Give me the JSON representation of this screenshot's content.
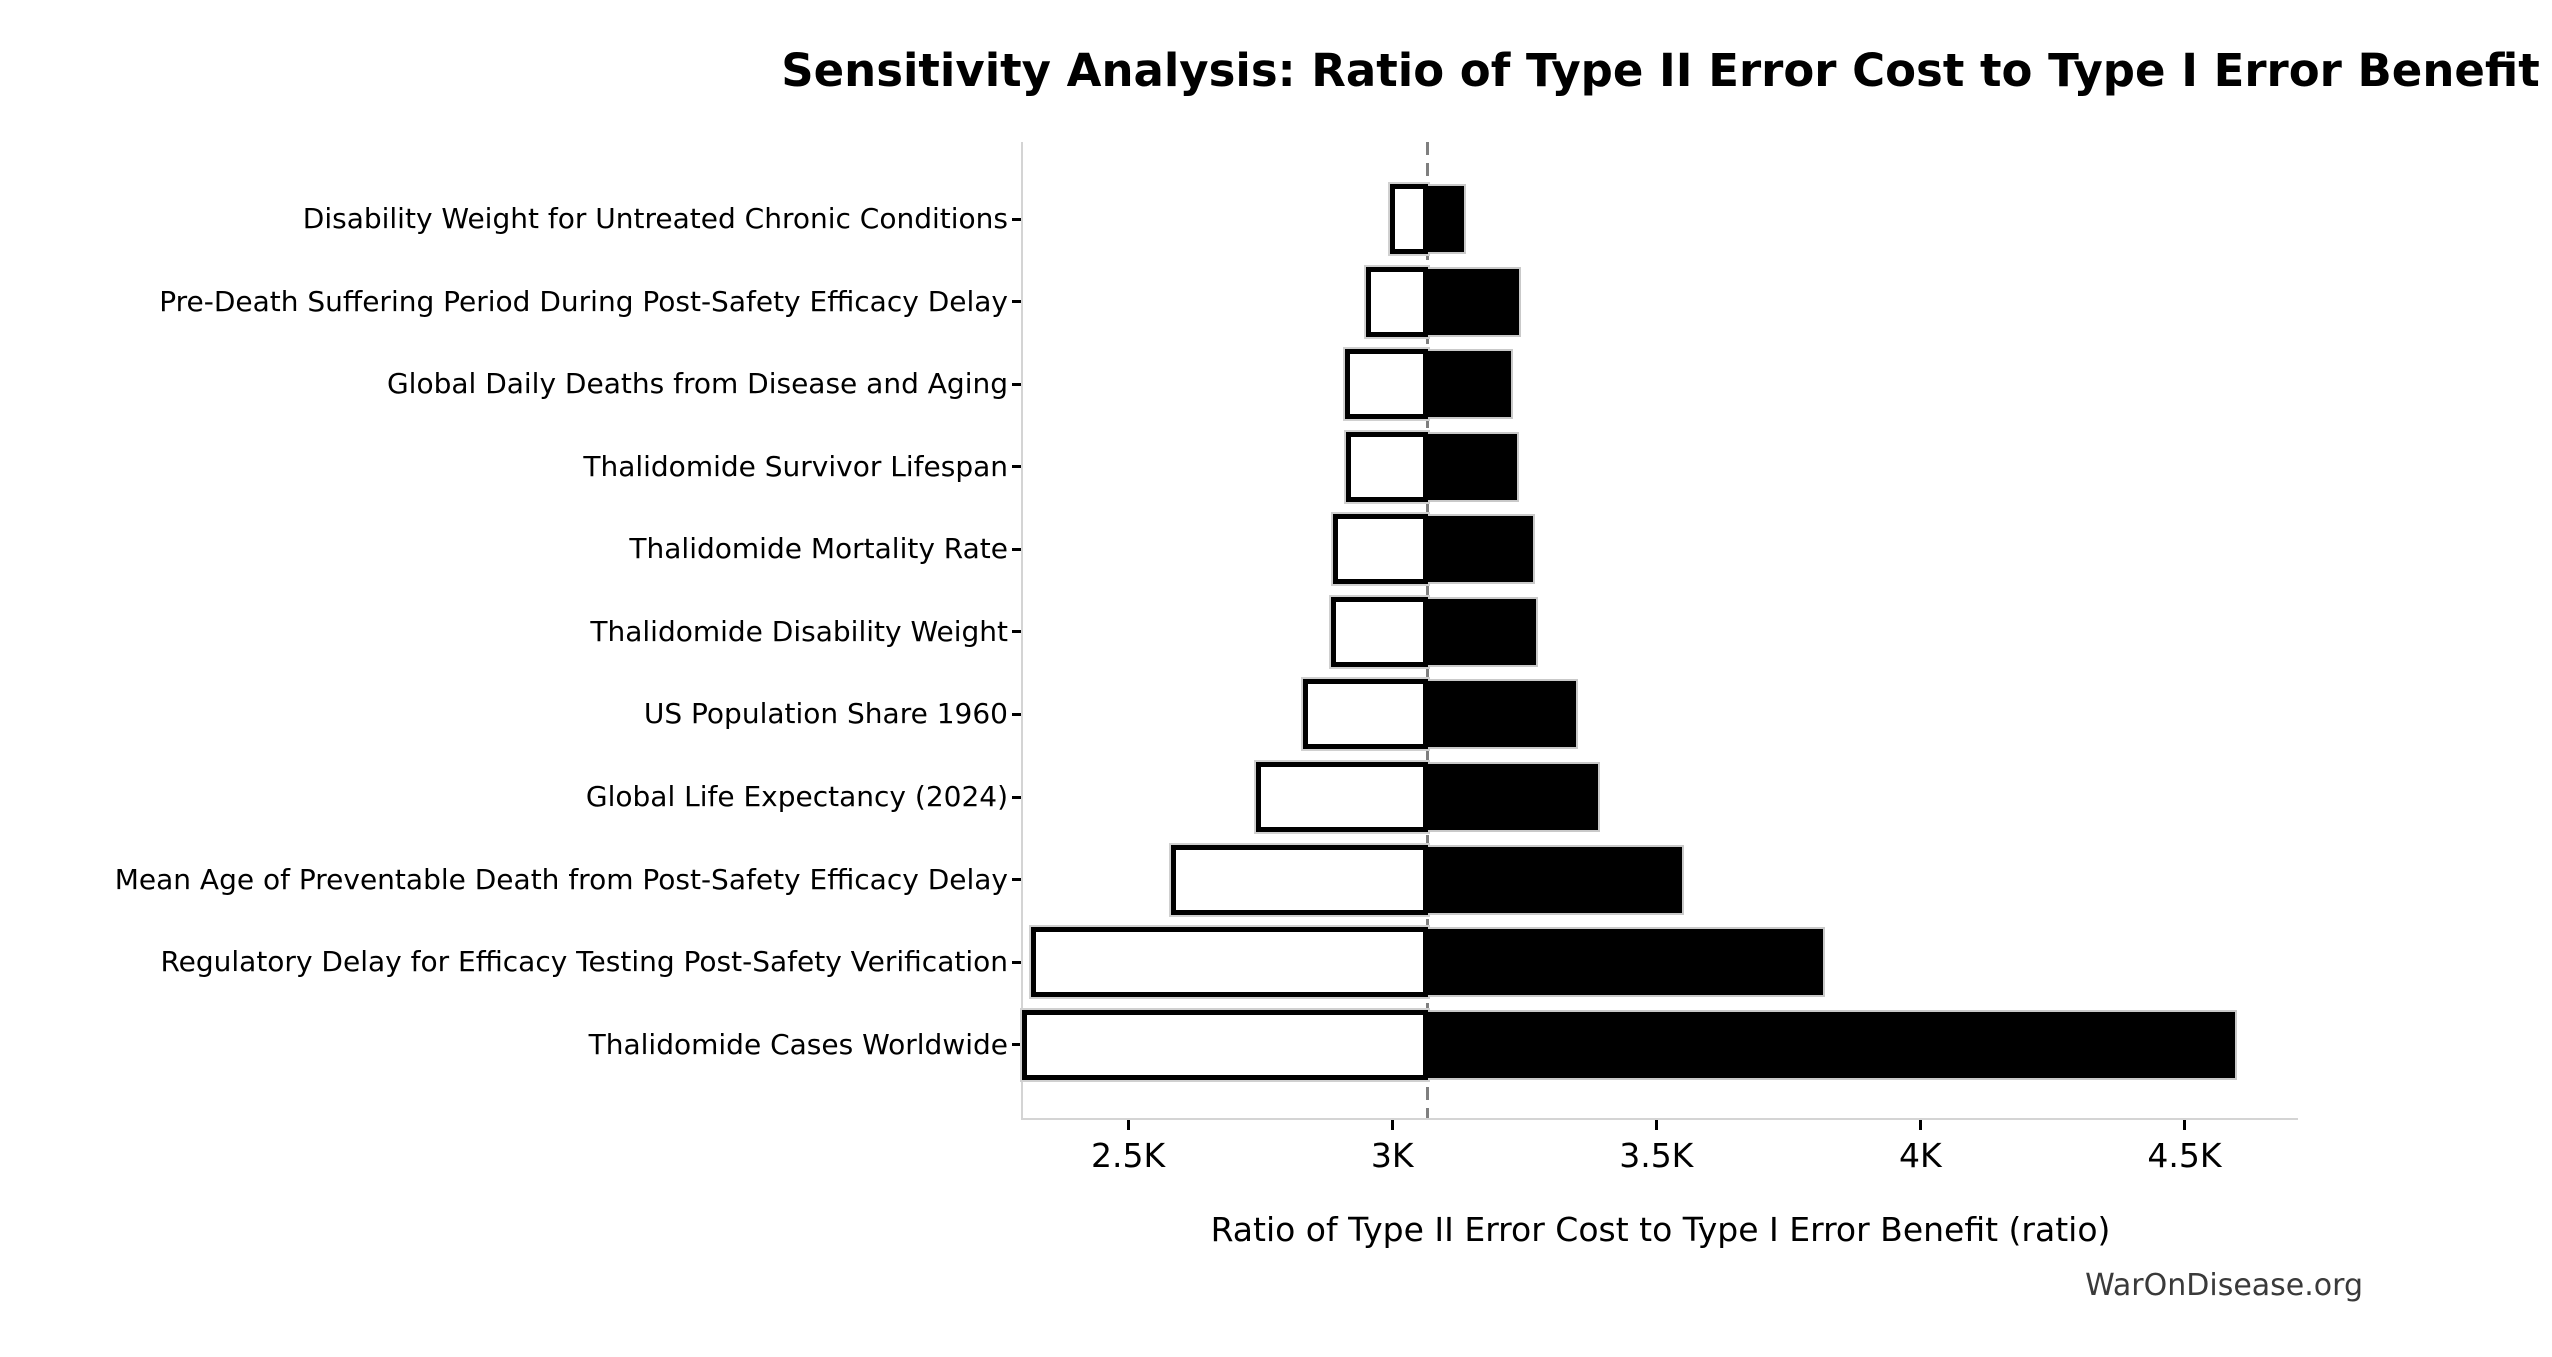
{
  "chart_data": {
    "type": "bar",
    "subtype": "tornado-sensitivity",
    "title": "Sensitivity Analysis: Ratio of Type II Error Cost to Type I Error Benefit",
    "xlabel": "Ratio of Type II Error Cost to Type I Error Benefit (ratio)",
    "footer": "WarOnDisease.org",
    "baseline": 3067,
    "xlim": [
      2301,
      4715
    ],
    "grid": false,
    "legend": "none",
    "x_ticks": [
      {
        "value": 2500,
        "label": "2.5K"
      },
      {
        "value": 3000,
        "label": "3K"
      },
      {
        "value": 3500,
        "label": "3.5K"
      },
      {
        "value": 4000,
        "label": "4K"
      },
      {
        "value": 4500,
        "label": "4.5K"
      }
    ],
    "rows": [
      {
        "label": "Disability Weight for Untreated Chronic Conditions",
        "low": 2996,
        "high": 3139
      },
      {
        "label": "Pre-Death Suffering Period During Post-Safety Efficacy Delay",
        "low": 2951,
        "high": 3244
      },
      {
        "label": "Global Daily Deaths from Disease and Aging",
        "low": 2911,
        "high": 3228
      },
      {
        "label": "Thalidomide Survivor Lifespan",
        "low": 2913,
        "high": 3240
      },
      {
        "label": "Thalidomide Mortality Rate",
        "low": 2888,
        "high": 3271
      },
      {
        "label": "Thalidomide Disability Weight",
        "low": 2885,
        "high": 3276
      },
      {
        "label": "US Population Share 1960",
        "low": 2831,
        "high": 3352
      },
      {
        "label": "Global Life Expectancy (2024)",
        "low": 2743,
        "high": 3394
      },
      {
        "label": "Mean Age of Preventable Death from Post-Safety Efficacy Delay",
        "low": 2582,
        "high": 3553
      },
      {
        "label": "Regulatory Delay for Efficacy Testing Post-Safety Verification",
        "low": 2317,
        "high": 3820
      },
      {
        "label": "Thalidomide Cases Worldwide",
        "low": 2300,
        "high": 4600
      }
    ],
    "colors": {
      "low_bar_fill": "#ffffff",
      "low_bar_edge": "#000000",
      "high_bar_fill": "#000000",
      "bar_outline": "#c9c9c9",
      "baseline_line": "#7f7f7f",
      "spine": "#d4d4d4",
      "footer_text": "#3a3a3a"
    }
  }
}
